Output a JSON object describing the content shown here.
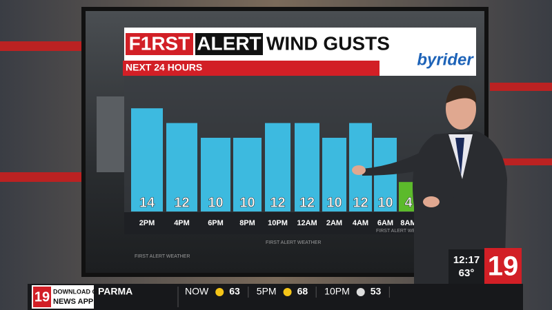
{
  "chart_data": {
    "type": "bar",
    "title_parts": [
      "F1RST",
      "ALERT",
      "WIND GUSTS"
    ],
    "subtitle": "NEXT 24 HOURS",
    "categories": [
      "2PM",
      "4PM",
      "6PM",
      "8PM",
      "10PM",
      "12AM",
      "2AM",
      "4AM",
      "6AM",
      "8AM"
    ],
    "values": [
      14,
      12,
      10,
      10,
      12,
      12,
      10,
      12,
      10,
      4
    ],
    "colors": [
      "#3ec6ee",
      "#3ec6ee",
      "#3ec6ee",
      "#3ec6ee",
      "#3ec6ee",
      "#3ec6ee",
      "#3ec6ee",
      "#3ec6ee",
      "#3ec6ee",
      "#5fc62a"
    ]
  },
  "sponsor": "byrider",
  "watermark": "FIRST ALERT WEATHER",
  "clock": {
    "time": "12:17",
    "temp": "63°",
    "logo": "19"
  },
  "ticker": {
    "logo": "19",
    "app_line1": "DOWNLOAD OUR",
    "app_line2": "NEWS APP",
    "city": "PARMA",
    "items": [
      {
        "label": "NOW",
        "temp": 63
      },
      {
        "label": "5PM",
        "temp": 68
      },
      {
        "label": "10PM",
        "temp": 53
      }
    ]
  }
}
